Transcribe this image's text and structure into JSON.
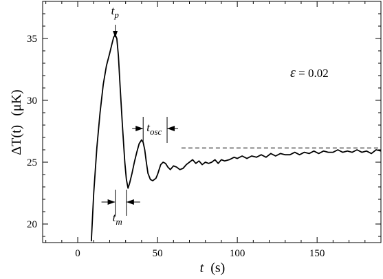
{
  "chart_data": {
    "type": "line",
    "xlabel_var": "t",
    "xlabel_unit": "(s)",
    "ylabel_main": "ΔT(t)",
    "ylabel_unit": "(μK)",
    "xlim": [
      -22,
      190
    ],
    "ylim": [
      18.5,
      38
    ],
    "x_ticks": [
      0,
      50,
      100,
      150
    ],
    "y_ticks": [
      20,
      25,
      30,
      35
    ],
    "series": [
      {
        "x": [
          8.5,
          10,
          12,
          14,
          16,
          18,
          20,
          21.5,
          22.5,
          23.5,
          24.5,
          25.5,
          26.5,
          28,
          29.5,
          30.5,
          31.5,
          32.5,
          34,
          35.5,
          37,
          38.5,
          40,
          41,
          42,
          43,
          44,
          45.5,
          47,
          48,
          49,
          50,
          51,
          52,
          53.5,
          55,
          56.5,
          58,
          60,
          62,
          64,
          66,
          68,
          70,
          72,
          74,
          76,
          78,
          80,
          82,
          84,
          86,
          88,
          90,
          92,
          95,
          98,
          100,
          103,
          106,
          109,
          112,
          115,
          118,
          121,
          124,
          127,
          130,
          133,
          136,
          139,
          142,
          145,
          148,
          151,
          154,
          157,
          160,
          163,
          166,
          169,
          172,
          175,
          178,
          181,
          184,
          187,
          190
        ],
        "y": [
          18.6,
          22.5,
          26.2,
          29.0,
          31.3,
          32.8,
          33.8,
          34.6,
          35.1,
          35.3,
          35.0,
          33.6,
          31.2,
          28.0,
          25.0,
          23.6,
          22.9,
          23.3,
          24.1,
          25.0,
          25.8,
          26.5,
          26.8,
          26.6,
          26.0,
          25.0,
          24.1,
          23.6,
          23.5,
          23.6,
          23.7,
          24.0,
          24.4,
          24.8,
          25.0,
          24.9,
          24.6,
          24.4,
          24.7,
          24.6,
          24.4,
          24.5,
          24.8,
          25.0,
          25.2,
          24.9,
          25.1,
          24.8,
          25.0,
          24.9,
          25.0,
          25.2,
          24.9,
          25.2,
          25.1,
          25.2,
          25.4,
          25.3,
          25.5,
          25.3,
          25.5,
          25.4,
          25.6,
          25.4,
          25.7,
          25.5,
          25.7,
          25.6,
          25.6,
          25.8,
          25.6,
          25.8,
          25.7,
          25.9,
          25.7,
          25.9,
          25.8,
          25.8,
          26.0,
          25.8,
          25.9,
          25.8,
          26.0,
          25.8,
          25.9,
          25.7,
          26.0,
          25.9
        ]
      }
    ],
    "reference_line": {
      "y": 26.15,
      "x_start": 65,
      "x_end": 190
    },
    "annotations": {
      "tp": {
        "base": "t",
        "sub": "p",
        "x": 23.5
      },
      "tosc": {
        "base": "t",
        "sub": "osc",
        "x1": 41,
        "x2": 56
      },
      "tm": {
        "base": "t",
        "sub": "m",
        "x1": 23.5,
        "x2": 30.5
      },
      "epsilon": {
        "symbol": "ε",
        "text": " = 0.02"
      }
    }
  }
}
